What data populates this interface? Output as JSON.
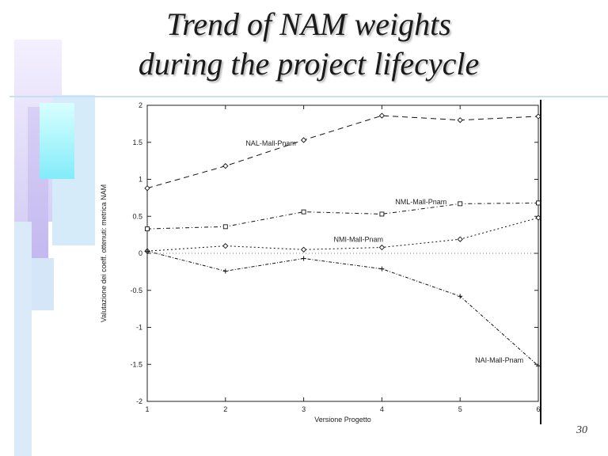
{
  "slide": {
    "title_line1": "Trend of NAM weights",
    "title_line2": "during the project lifecycle",
    "page_number": "30"
  },
  "chart_data": {
    "type": "line",
    "xlabel": "Versione Progetto",
    "ylabel": "Valutazione dei coeff. ottenuti: metrica NAM",
    "x": [
      1,
      2,
      3,
      4,
      5,
      6
    ],
    "xlim": [
      1,
      6
    ],
    "ylim": [
      -2,
      2
    ],
    "xticks": [
      "1",
      "2",
      "3",
      "4",
      "5",
      "6"
    ],
    "yticks": [
      2,
      1.5,
      1,
      0.5,
      0,
      -0.5,
      -1,
      -1.5,
      -2
    ],
    "grid": false,
    "zero_line": true,
    "series": [
      {
        "name": "NAL-Mall-Pnam",
        "values": [
          0.88,
          1.18,
          1.53,
          1.86,
          1.8,
          1.85
        ],
        "dash": "7 5",
        "marker": "diamond"
      },
      {
        "name": "NML-Mall-Pnam",
        "values": [
          0.33,
          0.36,
          0.56,
          0.53,
          0.67,
          0.68
        ],
        "dash": "5 3 1 3",
        "marker": "square"
      },
      {
        "name": "NMI-Mall-Pnam",
        "values": [
          0.03,
          0.1,
          0.05,
          0.08,
          0.19,
          0.48
        ],
        "dash": "2 3",
        "marker": "diamond"
      },
      {
        "name": "NAI-Mall-Pnam",
        "values": [
          0.03,
          -0.24,
          -0.07,
          -0.21,
          -0.58,
          -1.52
        ],
        "dash": "4 2 1 2",
        "marker": "plus"
      }
    ],
    "annotations": [
      {
        "series": 0,
        "text": "NAL-Mall-Pnam"
      },
      {
        "series": 1,
        "text": "NML-Mall-Pnam"
      },
      {
        "series": 2,
        "text": "NMI-Mall-Pnam"
      },
      {
        "series": 3,
        "text": "NAI-Mall-Pnam"
      }
    ]
  }
}
